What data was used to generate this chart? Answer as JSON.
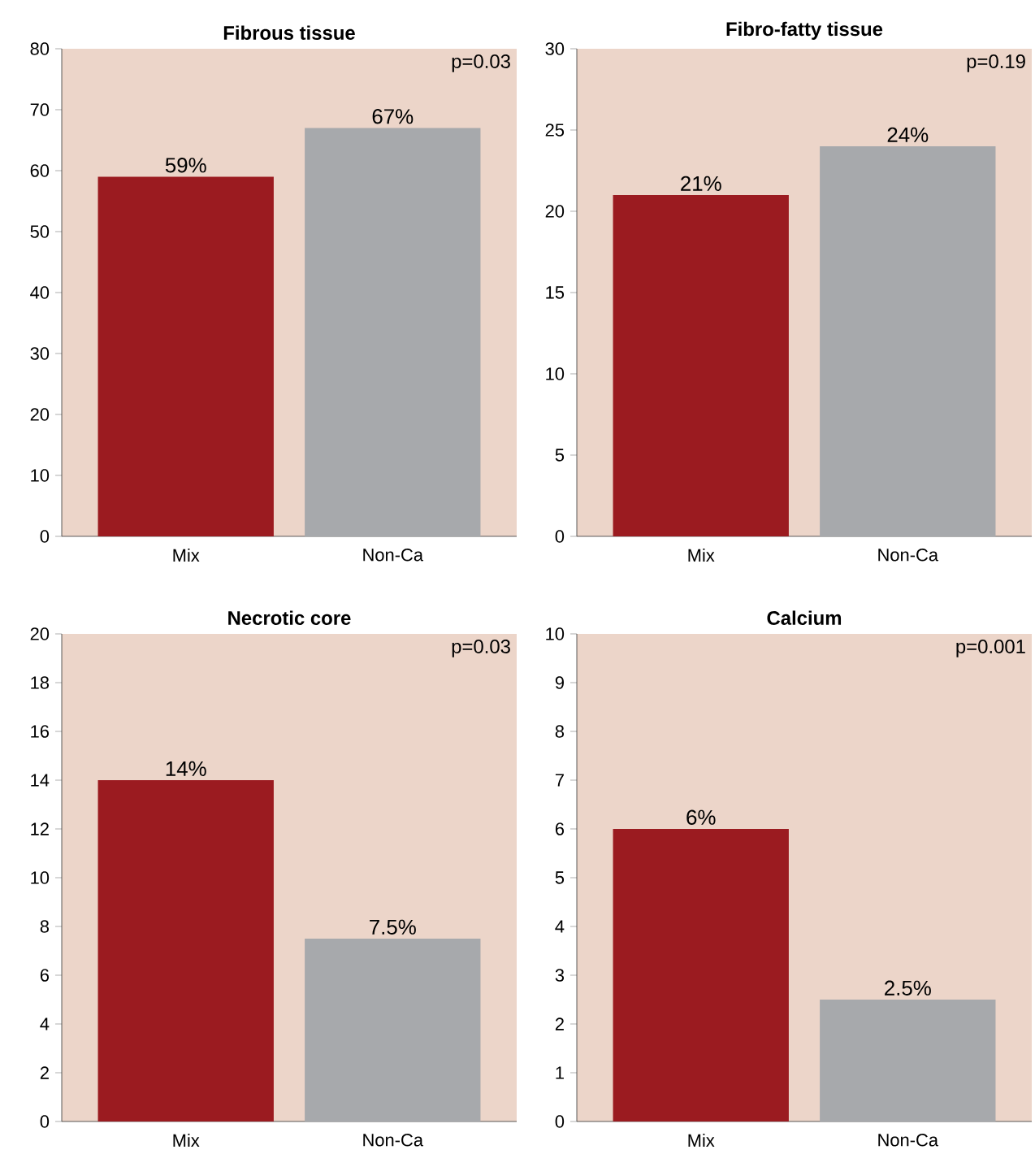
{
  "chart_data": [
    {
      "type": "bar",
      "title": "Fibrous tissue",
      "categories": [
        "Mix",
        "Non-Ca"
      ],
      "values": [
        59,
        67
      ],
      "colors": [
        "#9b1b20",
        "#a7a9ac"
      ],
      "value_labels": [
        "59%",
        "67%"
      ],
      "ylim": [
        0,
        80
      ],
      "yticks": [
        0,
        10,
        20,
        30,
        40,
        50,
        60,
        70,
        80
      ],
      "annotations": [
        "p=0.03"
      ]
    },
    {
      "type": "bar",
      "title": "Fibro-fatty tissue",
      "categories": [
        "Mix",
        "Non-Ca"
      ],
      "values": [
        21,
        24
      ],
      "colors": [
        "#9b1b20",
        "#a7a9ac"
      ],
      "value_labels": [
        "21%",
        "24%"
      ],
      "ylim": [
        0,
        30
      ],
      "yticks": [
        0,
        5,
        10,
        15,
        20,
        25,
        30
      ],
      "annotations": [
        "p=0.19"
      ]
    },
    {
      "type": "bar",
      "title": "Necrotic core",
      "categories": [
        "Mix",
        "Non-Ca"
      ],
      "values": [
        14,
        7.5
      ],
      "colors": [
        "#9b1b20",
        "#a7a9ac"
      ],
      "value_labels": [
        "14%",
        "7.5%"
      ],
      "ylim": [
        0,
        20
      ],
      "yticks": [
        0,
        2,
        4,
        6,
        8,
        10,
        12,
        14,
        16,
        18,
        20
      ],
      "annotations": [
        "p=0.03"
      ]
    },
    {
      "type": "bar",
      "title": "Calcium",
      "categories": [
        "Mix",
        "Non-Ca"
      ],
      "values": [
        6,
        2.5
      ],
      "colors": [
        "#9b1b20",
        "#a7a9ac"
      ],
      "value_labels": [
        "6%",
        "2.5%"
      ],
      "ylim": [
        0,
        10
      ],
      "yticks": [
        0,
        1,
        2,
        3,
        4,
        5,
        6,
        7,
        8,
        9,
        10
      ],
      "annotations": [
        "p=0.001"
      ]
    }
  ]
}
